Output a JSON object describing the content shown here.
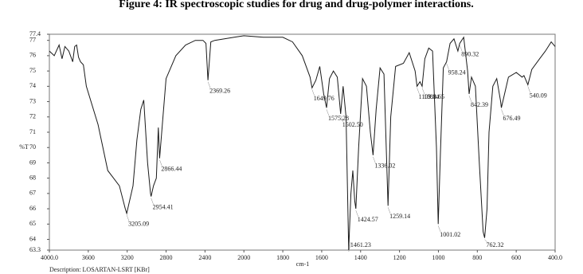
{
  "chart_data": {
    "type": "line",
    "title": "Figure 4: IR spectroscopic studies for drug and drug-polymer interactions.",
    "x_label": "cm-1",
    "y_label": "%T",
    "description": "Description: LOSARTAN-LSRT [KBr]",
    "color": "#1a1a1a",
    "xlim": [
      4000,
      400
    ],
    "xticks": [
      {
        "value": 4000,
        "label": "4000.0"
      },
      3600,
      3200,
      2800,
      2400,
      2000,
      1800,
      1600,
      1400,
      1200,
      1000,
      800,
      600,
      {
        "value": 400,
        "label": "400.0"
      }
    ],
    "ylim": [
      63.3,
      77.4
    ],
    "yticks": [
      63.3,
      64,
      65,
      66,
      67,
      68,
      69,
      70,
      71,
      72,
      73,
      74,
      75,
      76,
      77,
      77.4
    ],
    "x": [
      4000,
      3950,
      3900,
      3870,
      3840,
      3800,
      3760,
      3740,
      3720,
      3700,
      3680,
      3650,
      3620,
      3500,
      3400,
      3340,
      3280,
      3220,
      3205.09,
      3140,
      3100,
      3060,
      3030,
      2990,
      2960,
      2954.41,
      2930,
      2900,
      2880,
      2866.44,
      2800,
      2700,
      2600,
      2500,
      2420,
      2390,
      2369.26,
      2340,
      2300,
      2200,
      2100,
      2000,
      1900,
      1800,
      1750,
      1700,
      1660,
      1649.76,
      1630,
      1610,
      1590,
      1575.28,
      1560,
      1540,
      1520,
      1502.5,
      1490,
      1475,
      1461.23,
      1450,
      1440,
      1430,
      1424.57,
      1410,
      1390,
      1370,
      1350,
      1336.02,
      1320,
      1300,
      1280,
      1259.14,
      1245,
      1220,
      1180,
      1150,
      1120,
      1109.84,
      1095,
      1083.65,
      1070,
      1050,
      1030,
      1010,
      1001.02,
      990,
      975,
      958.24,
      940,
      920,
      900,
      890.32,
      870,
      850,
      842.39,
      830,
      810,
      790,
      770,
      762.32,
      750,
      740,
      720,
      700,
      680,
      676.49,
      660,
      640,
      600,
      570,
      560,
      540.09,
      520,
      480,
      450,
      420,
      400
    ],
    "values": [
      76.3,
      76.0,
      76.7,
      75.8,
      76.6,
      76.3,
      75.6,
      76.6,
      76.7,
      75.9,
      75.6,
      75.4,
      74.0,
      71.5,
      68.5,
      68.0,
      67.5,
      66.0,
      65.7,
      67.5,
      70.5,
      72.5,
      73.1,
      69.0,
      67.0,
      66.8,
      67.5,
      68.0,
      71.3,
      69.3,
      74.5,
      76.0,
      76.7,
      77.0,
      77.0,
      76.8,
      74.4,
      76.9,
      77.0,
      77.1,
      77.2,
      77.3,
      77.2,
      77.2,
      76.9,
      76.0,
      74.6,
      73.9,
      74.4,
      75.3,
      73.5,
      72.6,
      74.5,
      75.0,
      74.6,
      72.2,
      74.0,
      72.0,
      63.3,
      67.0,
      68.5,
      66.5,
      66.0,
      70.0,
      74.5,
      74.0,
      71.0,
      69.5,
      72.5,
      75.2,
      74.8,
      66.2,
      72.0,
      75.3,
      75.5,
      76.2,
      75.0,
      74.0,
      74.3,
      74.0,
      75.8,
      76.5,
      76.3,
      70.0,
      65.0,
      69.5,
      75.2,
      75.6,
      76.8,
      77.1,
      76.3,
      76.8,
      77.2,
      75.0,
      73.5,
      74.6,
      74.0,
      69.0,
      64.5,
      64.1,
      66.0,
      71.0,
      74.0,
      74.5,
      73.0,
      72.6,
      73.5,
      74.6,
      74.9,
      74.6,
      74.7,
      74.1,
      75.1,
      75.8,
      76.3,
      76.9,
      76.6
    ],
    "peaks": [
      {
        "x": 3205.09,
        "label": "3205.09"
      },
      {
        "x": 2954.41,
        "label": "2954.41"
      },
      {
        "x": 2866.44,
        "label": "2866.44"
      },
      {
        "x": 2369.26,
        "label": "2369.26"
      },
      {
        "x": 1649.76,
        "label": "1649.76"
      },
      {
        "x": 1575.28,
        "label": "1575.28"
      },
      {
        "x": 1502.5,
        "label": "1502.50"
      },
      {
        "x": 1461.23,
        "label": "1461.23"
      },
      {
        "x": 1424.57,
        "label": "1424.57"
      },
      {
        "x": 1336.02,
        "label": "1336.02"
      },
      {
        "x": 1259.14,
        "label": "1259.14"
      },
      {
        "x": 1109.84,
        "label": "1109.84"
      },
      {
        "x": 1083.65,
        "label": "1083.65"
      },
      {
        "x": 1001.02,
        "label": "1001.02"
      },
      {
        "x": 958.24,
        "label": "958.24"
      },
      {
        "x": 890.32,
        "label": "890.32"
      },
      {
        "x": 842.39,
        "label": "842.39"
      },
      {
        "x": 762.32,
        "label": "762.32"
      },
      {
        "x": 676.49,
        "label": "676.49"
      },
      {
        "x": 540.09,
        "label": "540.09"
      }
    ]
  }
}
